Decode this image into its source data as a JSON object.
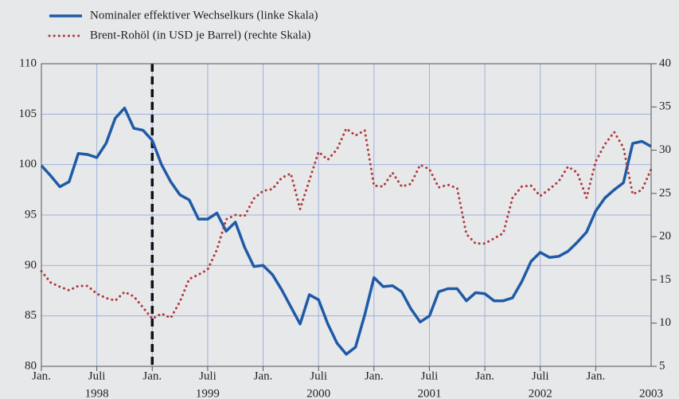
{
  "chart_data": {
    "type": "line",
    "x": [
      "1998-01",
      "1998-02",
      "1998-03",
      "1998-04",
      "1998-05",
      "1998-06",
      "1998-07",
      "1998-08",
      "1998-09",
      "1998-10",
      "1998-11",
      "1998-12",
      "1999-01",
      "1999-02",
      "1999-03",
      "1999-04",
      "1999-05",
      "1999-06",
      "1999-07",
      "1999-08",
      "1999-09",
      "1999-10",
      "1999-11",
      "1999-12",
      "2000-01",
      "2000-02",
      "2000-03",
      "2000-04",
      "2000-05",
      "2000-06",
      "2000-07",
      "2000-08",
      "2000-09",
      "2000-10",
      "2000-11",
      "2000-12",
      "2001-01",
      "2001-02",
      "2001-03",
      "2001-04",
      "2001-05",
      "2001-06",
      "2001-07",
      "2001-08",
      "2001-09",
      "2001-10",
      "2001-11",
      "2001-12",
      "2002-01",
      "2002-02",
      "2002-03",
      "2002-04",
      "2002-05",
      "2002-06",
      "2002-07",
      "2002-08",
      "2002-09",
      "2002-10",
      "2002-11",
      "2002-12",
      "2003-01",
      "2003-02",
      "2003-03",
      "2003-04",
      "2003-05",
      "2003-06",
      "2003-07"
    ],
    "series": [
      {
        "name": "Nominaler effektiver Wechselkurs (linke Skala)",
        "color": "#1f5aa6",
        "axis": "y",
        "values": [
          99.9,
          98.9,
          97.8,
          98.3,
          101.1,
          101.0,
          100.7,
          102.1,
          104.6,
          105.6,
          103.6,
          103.4,
          102.4,
          100.0,
          98.3,
          97.0,
          96.5,
          94.6,
          94.6,
          95.2,
          93.4,
          94.3,
          91.8,
          89.9,
          90.0,
          89.1,
          87.6,
          85.9,
          84.2,
          87.1,
          86.6,
          84.2,
          82.3,
          81.2,
          81.9,
          85.1,
          88.8,
          87.9,
          88.0,
          87.4,
          85.7,
          84.4,
          85.0,
          87.4,
          87.7,
          87.7,
          86.5,
          87.3,
          87.2,
          86.5,
          86.5,
          86.8,
          88.4,
          90.4,
          91.3,
          90.8,
          90.9,
          91.4,
          92.3,
          93.3,
          95.4,
          96.7,
          97.5,
          98.2,
          102.1,
          102.3,
          101.8
        ]
      },
      {
        "name": "Brent-Rohöl (in USD je Barrel) (rechte Skala)",
        "color": "#b03a3a",
        "axis": "y2",
        "dotted": true,
        "values": [
          16.0,
          14.7,
          14.2,
          13.8,
          14.3,
          14.3,
          13.4,
          12.9,
          12.6,
          13.6,
          13.1,
          11.8,
          10.5,
          11.1,
          10.6,
          12.5,
          15.1,
          15.6,
          16.2,
          18.5,
          22.0,
          22.5,
          22.4,
          24.4,
          25.3,
          25.5,
          26.8,
          27.3,
          23.2,
          26.5,
          29.8,
          28.9,
          30.1,
          32.5,
          31.7,
          32.3,
          25.9,
          25.8,
          27.4,
          25.8,
          26.1,
          28.3,
          27.8,
          25.7,
          26.0,
          25.6,
          20.3,
          19.2,
          19.2,
          19.8,
          20.4,
          24.5,
          25.8,
          25.9,
          24.7,
          25.5,
          26.4,
          28.1,
          27.4,
          24.5,
          28.7,
          30.7,
          32.1,
          30.3,
          24.9,
          25.4,
          27.8
        ]
      }
    ],
    "xlim": [
      "1998-01",
      "2003-07"
    ],
    "xticks": [
      {
        "value": "1998-01",
        "label": "Jan."
      },
      {
        "value": "1998-07",
        "label": "Juli"
      },
      {
        "value": "1999-01",
        "label": "Jan."
      },
      {
        "value": "1999-07",
        "label": "Juli"
      },
      {
        "value": "2000-01",
        "label": "Jan."
      },
      {
        "value": "2000-07",
        "label": "Juli"
      },
      {
        "value": "2001-01",
        "label": "Jan."
      },
      {
        "value": "2001-07",
        "label": "Juli"
      },
      {
        "value": "2002-01",
        "label": "Jan."
      },
      {
        "value": "2002-07",
        "label": "Juli"
      },
      {
        "value": "2003-01",
        "label": "Jan."
      }
    ],
    "year_labels": [
      {
        "value": "1998-07",
        "label": "1998"
      },
      {
        "value": "1999-07",
        "label": "1999"
      },
      {
        "value": "2000-07",
        "label": "2000"
      },
      {
        "value": "2001-07",
        "label": "2001"
      },
      {
        "value": "2002-07",
        "label": "2002"
      },
      {
        "value": "2003-07",
        "label": "2003"
      }
    ],
    "ylim": [
      80,
      110
    ],
    "yticks": [
      80,
      85,
      90,
      95,
      100,
      105,
      110
    ],
    "y2lim": [
      5,
      40
    ],
    "y2ticks": [
      5,
      10,
      15,
      20,
      25,
      30,
      35,
      40
    ],
    "vline": "1999-01",
    "grid": true
  }
}
